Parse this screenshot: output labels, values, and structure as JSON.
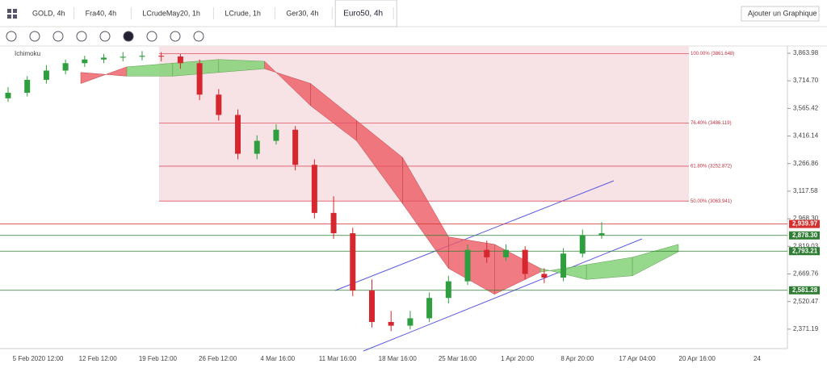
{
  "tabs": [
    "GOLD, 4h",
    "Fra40, 4h",
    "LCrudeMay20, 1h",
    "LCrude, 1h",
    "Ger30, 4h",
    "Euro50, 4h"
  ],
  "add_chart": "Ajouter un Graphique",
  "chart_data": {
    "type": "candlestick",
    "indicator": "Ichimoku",
    "ylim": [
      2266,
      3903
    ],
    "yticks": [
      {
        "value": 3863.98,
        "label": "3,863.98"
      },
      {
        "value": 3714.7,
        "label": "3,714.70"
      },
      {
        "value": 3565.42,
        "label": "3,565.42"
      },
      {
        "value": 3416.14,
        "label": "3,416.14"
      },
      {
        "value": 3266.86,
        "label": "3,266.86"
      },
      {
        "value": 3117.58,
        "label": "3,117.58"
      },
      {
        "value": 2968.3,
        "label": "2,968.30"
      },
      {
        "value": 2819.03,
        "label": "2,819.03"
      },
      {
        "value": 2669.76,
        "label": "2,669.76"
      },
      {
        "value": 2520.47,
        "label": "2,520.47"
      },
      {
        "value": 2371.19,
        "label": "2,371.19"
      }
    ],
    "x_labels": [
      "5 Feb 2020 12:00",
      "12 Feb 12:00",
      "19 Feb 12:00",
      "26 Feb 12:00",
      "4 Mar 16:00",
      "11 Mar 16:00",
      "18 Mar 16:00",
      "25 Mar 16:00",
      "1 Apr 20:00",
      "8 Apr 20:00",
      "17 Apr 04:00",
      "20 Apr 16:00",
      "24"
    ],
    "candles": [
      [
        3620,
        3680,
        3600,
        3650
      ],
      [
        3650,
        3740,
        3630,
        3720
      ],
      [
        3720,
        3800,
        3700,
        3770
      ],
      [
        3770,
        3830,
        3750,
        3810
      ],
      [
        3810,
        3850,
        3790,
        3830
      ],
      [
        3830,
        3860,
        3810,
        3840
      ],
      [
        3840,
        3870,
        3820,
        3845
      ],
      [
        3845,
        3875,
        3825,
        3850
      ],
      [
        3850,
        3870,
        3820,
        3846
      ],
      [
        3846,
        3860,
        3780,
        3810
      ],
      [
        3810,
        3830,
        3610,
        3640
      ],
      [
        3640,
        3670,
        3500,
        3530
      ],
      [
        3530,
        3560,
        3290,
        3320
      ],
      [
        3320,
        3420,
        3290,
        3390
      ],
      [
        3390,
        3480,
        3370,
        3450
      ],
      [
        3450,
        3470,
        3230,
        3260
      ],
      [
        3260,
        3290,
        2970,
        3000
      ],
      [
        3000,
        3090,
        2860,
        2890
      ],
      [
        2890,
        2920,
        2550,
        2580
      ],
      [
        2580,
        2640,
        2380,
        2410
      ],
      [
        2410,
        2470,
        2360,
        2390
      ],
      [
        2390,
        2470,
        2370,
        2430
      ],
      [
        2430,
        2570,
        2410,
        2540
      ],
      [
        2540,
        2660,
        2510,
        2630
      ],
      [
        2630,
        2830,
        2610,
        2800
      ],
      [
        2800,
        2850,
        2730,
        2760
      ],
      [
        2760,
        2830,
        2740,
        2800
      ],
      [
        2800,
        2820,
        2640,
        2670
      ],
      [
        2670,
        2700,
        2620,
        2650
      ],
      [
        2650,
        2810,
        2630,
        2780
      ],
      [
        2780,
        2910,
        2760,
        2880
      ],
      [
        2880,
        2950,
        2860,
        2890
      ]
    ],
    "cloud": {
      "span_a": [
        3700,
        3790,
        3810,
        3830,
        3820,
        3580,
        3390,
        3050,
        2700,
        2560,
        2680,
        2720,
        2760,
        2830
      ],
      "span_b": [
        3760,
        3740,
        3740,
        3760,
        3780,
        3700,
        3500,
        3300,
        2870,
        2830,
        2700,
        2640,
        2660,
        2790
      ]
    },
    "fib_levels": [
      {
        "value": 3861.648,
        "label": "100.00% (3861.648)"
      },
      {
        "value": 3486.119,
        "label": "76.40% (3486.119)"
      },
      {
        "value": 3252.872,
        "label": "61.80% (3252.872)"
      },
      {
        "value": 3063.941,
        "label": "50.00% (3063.941)"
      }
    ],
    "price_tags": [
      {
        "value": 2939.97,
        "label": "2,939.97",
        "color": "#d32f2f"
      },
      {
        "value": 2878.3,
        "label": "2,878.30",
        "color": "#2e7d32"
      },
      {
        "value": 2793.21,
        "label": "2,793.21",
        "color": "#2e7d32"
      },
      {
        "value": 2581.28,
        "label": "2,581.28",
        "color": "#2e7d32"
      }
    ]
  }
}
